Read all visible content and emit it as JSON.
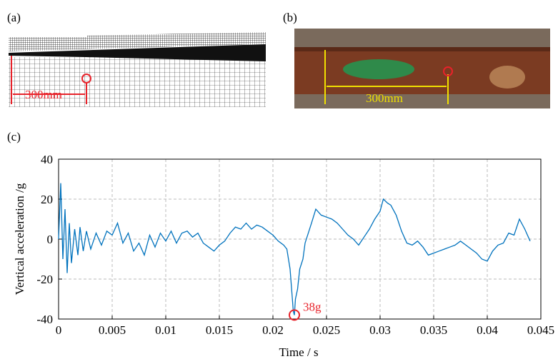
{
  "panels": {
    "a": {
      "label": "(a)",
      "dimension": "300mm"
    },
    "b": {
      "label": "(b)",
      "dimension": "300mm"
    }
  },
  "chart_data": {
    "type": "line",
    "label": "(c)",
    "xlabel": "Time / s",
    "ylabel": "Vertical acceleration /g",
    "color": "#0072bd",
    "x": [
      0,
      0.0002,
      0.0004,
      0.0006,
      0.0008,
      0.001,
      0.0012,
      0.0015,
      0.0018,
      0.002,
      0.0023,
      0.0026,
      0.003,
      0.0035,
      0.004,
      0.0045,
      0.005,
      0.0055,
      0.006,
      0.0065,
      0.007,
      0.0075,
      0.008,
      0.0085,
      0.009,
      0.0095,
      0.01,
      0.0105,
      0.011,
      0.0115,
      0.012,
      0.0125,
      0.013,
      0.0135,
      0.014,
      0.0145,
      0.015,
      0.0155,
      0.016,
      0.0165,
      0.017,
      0.0175,
      0.018,
      0.0185,
      0.019,
      0.0195,
      0.02,
      0.0205,
      0.021,
      0.0213,
      0.0216,
      0.0219,
      0.022,
      0.0221,
      0.0223,
      0.0225,
      0.0228,
      0.023,
      0.0233,
      0.0236,
      0.024,
      0.0245,
      0.025,
      0.0255,
      0.026,
      0.0265,
      0.027,
      0.0275,
      0.028,
      0.0285,
      0.029,
      0.0295,
      0.03,
      0.0303,
      0.0307,
      0.031,
      0.0315,
      0.032,
      0.0325,
      0.033,
      0.0335,
      0.034,
      0.0345,
      0.035,
      0.0355,
      0.036,
      0.0365,
      0.037,
      0.0375,
      0.038,
      0.0385,
      0.039,
      0.0395,
      0.04,
      0.0405,
      0.041,
      0.0415,
      0.042,
      0.0425,
      0.043,
      0.0435,
      0.044
    ],
    "values": [
      0,
      28,
      -10,
      15,
      -17,
      8,
      -12,
      5,
      -8,
      6,
      -6,
      4,
      -5,
      3,
      -3,
      4,
      2,
      8,
      -2,
      3,
      -6,
      -2,
      -8,
      2,
      -4,
      3,
      -1,
      4,
      -2,
      3,
      4,
      1,
      3,
      -2,
      -4,
      -6,
      -3,
      -1,
      3,
      6,
      5,
      8,
      5,
      7,
      6,
      4,
      2,
      -1,
      -3,
      -5,
      -15,
      -36,
      -38,
      -30,
      -25,
      -15,
      -10,
      -2,
      3,
      8,
      15,
      12,
      11,
      10,
      8,
      5,
      2,
      0,
      -3,
      1,
      5,
      10,
      14,
      20,
      18,
      17,
      12,
      4,
      -2,
      -3,
      -1,
      -4,
      -8,
      -7,
      -6,
      -5,
      -4,
      -3,
      -1,
      -3,
      -5,
      -7,
      -10,
      -11,
      -6,
      -3,
      -2,
      3,
      2,
      10,
      5,
      -1
    ],
    "xlim": [
      0,
      0.045
    ],
    "xticks": [
      0,
      0.005,
      0.01,
      0.015,
      0.02,
      0.025,
      0.03,
      0.035,
      0.04,
      0.045
    ],
    "ylim": [
      -40,
      40
    ],
    "yticks": [
      -40,
      -20,
      0,
      20,
      40
    ],
    "grid": true,
    "annotations": [
      {
        "text": "38g",
        "x": 0.022,
        "y": -38,
        "color": "#e8222a"
      }
    ]
  }
}
